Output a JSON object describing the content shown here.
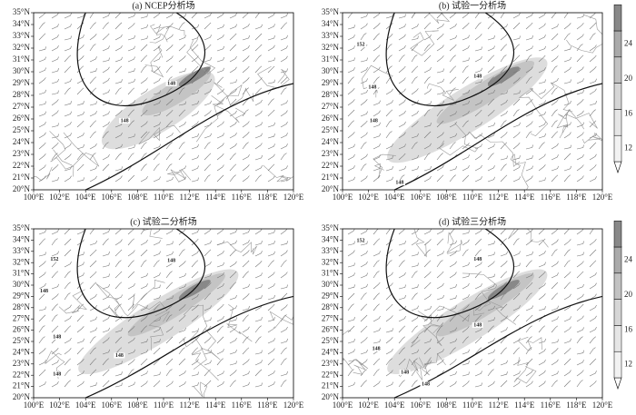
{
  "panels": [
    {
      "title": "(a) NCEP分析场",
      "contour_labels": [
        "148",
        "148"
      ]
    },
    {
      "title": "(b) 试验一分析场",
      "contour_labels": [
        "152",
        "148",
        "148",
        "148",
        "148"
      ]
    },
    {
      "title": "(c) 试验二分析场",
      "contour_labels": [
        "152",
        "148",
        "148",
        "148",
        "148",
        "148"
      ]
    },
    {
      "title": "(d) 试验三分析场",
      "contour_labels": [
        "152",
        "148",
        "148",
        "148",
        "148",
        "148"
      ]
    }
  ],
  "lat_labels": [
    "35°N",
    "34°N",
    "33°N",
    "32°N",
    "31°N",
    "30°N",
    "29°N",
    "28°N",
    "27°N",
    "26°N",
    "25°N",
    "24°N",
    "23°N",
    "22°N",
    "21°N",
    "20°N"
  ],
  "lon_labels": [
    "100°E",
    "102°E",
    "104°E",
    "106°E",
    "108°E",
    "110°E",
    "112°E",
    "114°E",
    "116°E",
    "118°E",
    "120°E"
  ],
  "colorbar_ticks": [
    12,
    16,
    20,
    24
  ]
}
